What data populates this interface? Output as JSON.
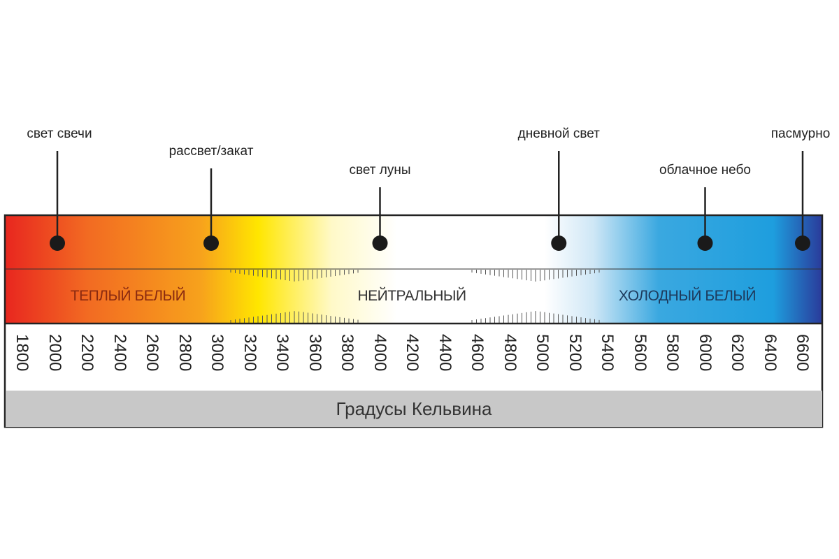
{
  "axis": {
    "unit_label": "Градусы Кельвина",
    "min": 1800,
    "max": 6600,
    "ticks": [
      "1800",
      "2000",
      "2200",
      "2400",
      "2600",
      "2800",
      "3000",
      "3200",
      "3400",
      "3600",
      "3800",
      "4000",
      "4200",
      "4400",
      "4600",
      "4800",
      "5000",
      "5200",
      "5400",
      "5600",
      "5800",
      "6000",
      "6200",
      "6400",
      "6600"
    ]
  },
  "zones": [
    {
      "label": "ТЕПЛЫЙ БЕЛЫЙ",
      "color": "#8a2a10"
    },
    {
      "label": "НЕЙТРАЛЬНЫЙ",
      "color": "#333333"
    },
    {
      "label": "ХОЛОДНЫЙ БЕЛЫЙ",
      "color": "#1d3a5c"
    }
  ],
  "markers": [
    {
      "label": "свет свечи",
      "kelvin": 2000
    },
    {
      "label": "рассвет/закат",
      "kelvin": 3000
    },
    {
      "label": "свет луны",
      "kelvin": 4000
    },
    {
      "label": "дневной свет",
      "kelvin": 5100
    },
    {
      "label": "облачное небо",
      "kelvin": 6000
    },
    {
      "label": "пасмурно",
      "kelvin": 6600
    }
  ],
  "gradient_colors": [
    "#e8261f",
    "#f26a22",
    "#f7a21c",
    "#ffe600",
    "#fff9c8",
    "#ffffff",
    "#ffffff",
    "#cfe7f6",
    "#3aa8e0",
    "#1e9ede",
    "#2a3a9a"
  ]
}
